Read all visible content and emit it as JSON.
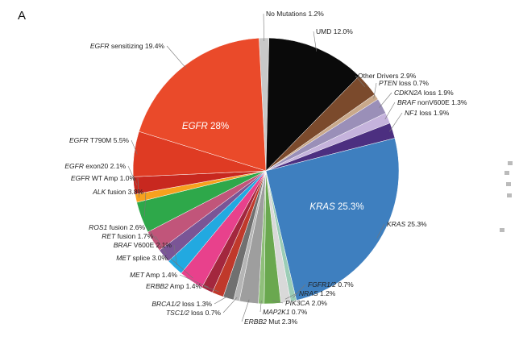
{
  "panel_label": "A",
  "colors": {
    "leader": "#777777",
    "slice_edge": "#ffffff"
  },
  "chart_data": {
    "type": "pie",
    "inner_labels": [
      {
        "label": "EGFR 28%",
        "color": "#ffffff"
      },
      {
        "label": "KRAS 25.3%",
        "color": "#ffffff"
      }
    ],
    "slices": [
      {
        "gene": "",
        "rest": "No Mutations 1.2%",
        "value": 1.2,
        "color": "#c8c8c8"
      },
      {
        "gene": "",
        "rest": "UMD 12.0%",
        "value": 12.0,
        "color": "#0a0a0a"
      },
      {
        "gene": "",
        "rest": "Other Drivers 2.9%",
        "value": 2.9,
        "color": "#7b4a2c"
      },
      {
        "gene": "PTEN",
        "rest": "loss 0.7%",
        "value": 0.7,
        "color": "#c9a98b"
      },
      {
        "gene": "CDKN2A",
        "rest": "loss 1.9%",
        "value": 1.9,
        "color": "#9a8fb8"
      },
      {
        "gene": "BRAF",
        "rest": "nonV600E 1.3%",
        "value": 1.3,
        "color": "#c5b3dc"
      },
      {
        "gene": "NF1",
        "rest": "loss 1.9%",
        "value": 1.9,
        "color": "#4c2f80"
      },
      {
        "gene": "KRAS",
        "rest": "25.3%",
        "value": 25.3,
        "color": "#3e7fbf"
      },
      {
        "gene": "FGFR1/2",
        "rest": "0.7%",
        "value": 0.7,
        "color": "#9ccdb6"
      },
      {
        "gene": "NRAS",
        "rest": "1.2%",
        "value": 1.2,
        "color": "#d9d9d9"
      },
      {
        "gene": "PIK3CA",
        "rest": "2.0%",
        "value": 2.0,
        "color": "#6aa84f"
      },
      {
        "gene": "MAP2K1",
        "rest": "0.7%",
        "value": 0.7,
        "color": "#8fbf7a"
      },
      {
        "gene": "ERBB2",
        "rest": "Mut 2.3%",
        "value": 2.3,
        "color": "#9e9e9e"
      },
      {
        "gene": "TSC1/2",
        "rest": "loss 0.7%",
        "value": 0.7,
        "color": "#b5b5b5"
      },
      {
        "gene": "BRCA1/2",
        "rest": "loss 1.3%",
        "value": 1.3,
        "color": "#707070"
      },
      {
        "gene": "ERBB2",
        "rest": "Amp 1.4%",
        "value": 1.4,
        "color": "#c0392b"
      },
      {
        "gene": "MET",
        "rest": "Amp 1.4%",
        "value": 1.4,
        "color": "#a3273e"
      },
      {
        "gene": "MET",
        "rest": "splice 3.0%",
        "value": 3.0,
        "color": "#e8418c"
      },
      {
        "gene": "BRAF",
        "rest": "V600E 2.1%",
        "value": 2.1,
        "color": "#22a9e0"
      },
      {
        "gene": "RET",
        "rest": "fusion 1.7%",
        "value": 1.7,
        "color": "#7a5596"
      },
      {
        "gene": "ROS1",
        "rest": "fusion 2.6%",
        "value": 2.6,
        "color": "#c1557a"
      },
      {
        "gene": "ALK",
        "rest": "fusion 3.8%",
        "value": 3.8,
        "color": "#2ea84a"
      },
      {
        "gene": "EGFR",
        "rest": "WT Amp 1.0%",
        "value": 1.0,
        "color": "#f7a11e"
      },
      {
        "gene": "EGFR",
        "rest": "exon20 2.1%",
        "value": 2.1,
        "color": "#c8281f"
      },
      {
        "gene": "EGFR",
        "rest": "T790M 5.5%",
        "value": 5.5,
        "color": "#df3b23"
      },
      {
        "gene": "EGFR",
        "rest": "sensitizing 19.4%",
        "value": 19.4,
        "color": "#ea4a2a"
      }
    ]
  }
}
